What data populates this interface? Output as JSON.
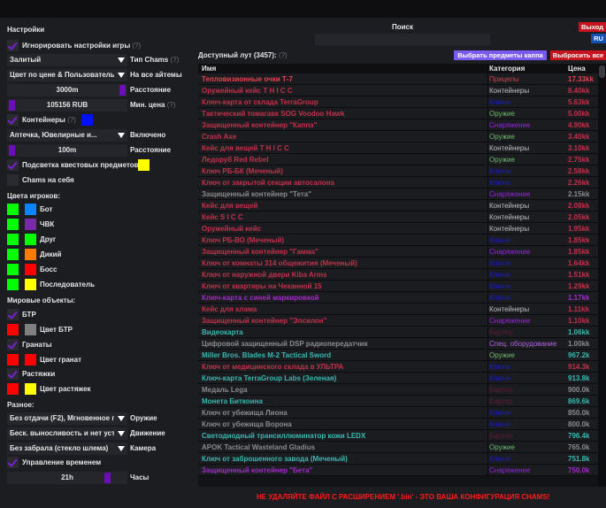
{
  "settings": {
    "title": "Настройки",
    "ignore_game_settings": "Игнорировать настройки игры",
    "help": "(?)",
    "chams_type_value": "Залитый",
    "chams_type_label": "Тип Chams",
    "color_mode_value": "Цвет по цене & Пользователь",
    "color_mode_label": "На все айтемы",
    "distance_value": "3000m",
    "distance_label": "Расстояние",
    "min_price_value": "105156 RUB",
    "min_price_label": "Мин. цена",
    "containers_label": "Контейнеры",
    "filter_value": "Аптечка, Ювелирные и...",
    "filter_label": "Включено",
    "container_distance_value": "100m",
    "container_distance_label": "Расстояние",
    "quest_highlight_label": "Подсветка квестовых предметов",
    "chams_self_label": "Chams на себя",
    "player_colors_title": "Цвета игроков:",
    "players": [
      {
        "label": "Бот",
        "c1": "#00ff00",
        "c2": "#0a84ff"
      },
      {
        "label": "ЧВК",
        "c1": "#00ff00",
        "c2": "#7a2aa8"
      },
      {
        "label": "Друг",
        "c1": "#00ff00",
        "c2": "#00ff00"
      },
      {
        "label": "Дикий",
        "c1": "#00ff00",
        "c2": "#ff7a00"
      },
      {
        "label": "Босс",
        "c1": "#00ff00",
        "c2": "#ff0000"
      },
      {
        "label": "Последователь",
        "c1": "#00ff00",
        "c2": "#ffff00"
      }
    ],
    "world_title": "Мировые объекты:",
    "btr_label": "БТР",
    "btr_color_label": "Цвет БТР",
    "grenades_label": "Гранаты",
    "grenades_color_label": "Цвет гранат",
    "tripwires_label": "Растяжки",
    "tripwires_color_label": "Цвет растяжек",
    "misc_title": "Разное:",
    "weapon_value": "Без отдачи (F2), Мгновенное п",
    "weapon_label": "Оружие",
    "movement_value": "Беск. выносливость и нет уста:",
    "movement_label": "Движение",
    "camera_value": "Без забрала (стекло шлема)",
    "camera_label": "Камера",
    "time_control_label": "Управление временем",
    "hours_value": "21h",
    "hours_label": "Часы"
  },
  "header": {
    "search_label": "Поиск",
    "search_value": "",
    "exit": "Выход",
    "lang": "RU"
  },
  "loot": {
    "title": "Доступный лут (3457):",
    "help": "(?)",
    "select_kappa": "Выбрать предметы каппа",
    "drop_all": "Выбросить все",
    "columns": [
      "Имя",
      "Категория",
      "Цена"
    ],
    "rows": [
      {
        "name": "Тепловизионные очки Т-7",
        "cat": "Прицелы",
        "price": "17.33kk",
        "nc": "#e8414f",
        "cc": "#d0404c",
        "pc": "#e8414f"
      },
      {
        "name": "Оружейный кейс T H I C C",
        "cat": "Контейнеры",
        "price": "8.40kk",
        "nc": "#c2304a",
        "cc": "#c0c0c0",
        "pc": "#c2304a"
      },
      {
        "name": "Ключ-карта от склада TerraGroup",
        "cat": "Ключи",
        "price": "5.63kk",
        "nc": "#c2304a",
        "cc": "#1a1ad0",
        "pc": "#c2304a"
      },
      {
        "name": "Тактический томагавк SOG Voodoo Hawk",
        "cat": "Оружие",
        "price": "5.00kk",
        "nc": "#c2304a",
        "cc": "#6db86d",
        "pc": "#c2304a"
      },
      {
        "name": "Защищенный контейнер \"Каппа\"",
        "cat": "Снаряжение",
        "price": "4.90kk",
        "nc": "#c2304a",
        "cc": "#9a1ee8",
        "pc": "#c2304a"
      },
      {
        "name": "Crash Axe",
        "cat": "Оружие",
        "price": "3.40kk",
        "nc": "#c2304a",
        "cc": "#6db86d",
        "pc": "#c2304a"
      },
      {
        "name": "Кейс для вещей T H I C C",
        "cat": "Контейнеры",
        "price": "3.10kk",
        "nc": "#c2304a",
        "cc": "#c0c0c0",
        "pc": "#c2304a"
      },
      {
        "name": "Ледоруб Red Rebel",
        "cat": "Оружие",
        "price": "2.75kk",
        "nc": "#c2304a",
        "cc": "#6db86d",
        "pc": "#c2304a"
      },
      {
        "name": "Ключ РБ-БК (Меченый)",
        "cat": "Ключи",
        "price": "2.58kk",
        "nc": "#c2304a",
        "cc": "#1a1ad0",
        "pc": "#c2304a"
      },
      {
        "name": "Ключ от закрытой секции автосалона",
        "cat": "Ключи",
        "price": "2.26kk",
        "nc": "#c2304a",
        "cc": "#1a1ad0",
        "pc": "#c2304a"
      },
      {
        "name": "Защищенный контейнер \"Тета\"",
        "cat": "Снаряжение",
        "price": "2.15kk",
        "nc": "#8a8a8a",
        "cc": "#9a1ee8",
        "pc": "#8a8a8a"
      },
      {
        "name": "Кейс для вещей",
        "cat": "Контейнеры",
        "price": "2.08kk",
        "nc": "#c2304a",
        "cc": "#c0c0c0",
        "pc": "#c2304a"
      },
      {
        "name": "Кейс S I C C",
        "cat": "Контейнеры",
        "price": "2.05kk",
        "nc": "#c2304a",
        "cc": "#c0c0c0",
        "pc": "#c2304a"
      },
      {
        "name": "Оружейный кейс",
        "cat": "Контейнеры",
        "price": "1.95kk",
        "nc": "#c2304a",
        "cc": "#c0c0c0",
        "pc": "#c2304a"
      },
      {
        "name": "Ключ РБ-ВО (Меченый)",
        "cat": "Ключи",
        "price": "1.85kk",
        "nc": "#c2304a",
        "cc": "#1a1ad0",
        "pc": "#c2304a"
      },
      {
        "name": "Защищенный контейнер \"Гамма\"",
        "cat": "Снаряжение",
        "price": "1.85kk",
        "nc": "#c2304a",
        "cc": "#9a1ee8",
        "pc": "#c2304a"
      },
      {
        "name": "Ключ от комнаты 314 общежития (Меченый)",
        "cat": "Ключи",
        "price": "1.64kk",
        "nc": "#c2304a",
        "cc": "#1a1ad0",
        "pc": "#c2304a"
      },
      {
        "name": "Ключ от наружной двери Kiba Arms",
        "cat": "Ключи",
        "price": "1.51kk",
        "nc": "#c2304a",
        "cc": "#1a1ad0",
        "pc": "#c2304a"
      },
      {
        "name": "Ключ от квартиры на Чеканной 15",
        "cat": "Ключи",
        "price": "1.29kk",
        "nc": "#c2304a",
        "cc": "#1a1ad0",
        "pc": "#c2304a"
      },
      {
        "name": "Ключ-карта с синей маркировкой",
        "cat": "Ключи",
        "price": "1.17kk",
        "nc": "#a02cc8",
        "cc": "#1a1ad0",
        "pc": "#a02cc8"
      },
      {
        "name": "Кейс для хлама",
        "cat": "Контейнеры",
        "price": "1.11kk",
        "nc": "#c2304a",
        "cc": "#c0c0c0",
        "pc": "#c2304a"
      },
      {
        "name": "Защищенный контейнер \"Эпсилон\"",
        "cat": "Снаряжение",
        "price": "1.10kk",
        "nc": "#c2304a",
        "cc": "#9a1ee8",
        "pc": "#c2304a"
      },
      {
        "name": "Видеокарта",
        "cat": "Бартер",
        "price": "1.06kk",
        "nc": "#3ab8b0",
        "cc": "#5a1c30",
        "pc": "#3ab8b0"
      },
      {
        "name": "Цифровой защищенный DSP радиопередатчик",
        "cat": "Спец. оборудование",
        "price": "1.00kk",
        "nc": "#8a8a8a",
        "cc": "#b060e8",
        "pc": "#8a8a8a"
      },
      {
        "name": "Miller Bros. Blades M-2 Tactical Sword",
        "cat": "Оружие",
        "price": "967.2k",
        "nc": "#3ab8b0",
        "cc": "#6db86d",
        "pc": "#3ab8b0"
      },
      {
        "name": "Ключ от медицинского склада в УЛЬТРА",
        "cat": "Ключи",
        "price": "914.3k",
        "nc": "#c2304a",
        "cc": "#1a1ad0",
        "pc": "#c2304a"
      },
      {
        "name": "Ключ-карта TerraGroup Labs (Зеленая)",
        "cat": "Ключи",
        "price": "913.8k",
        "nc": "#3ab8b0",
        "cc": "#1a1ad0",
        "pc": "#3ab8b0"
      },
      {
        "name": "Медаль Lega",
        "cat": "Бартер",
        "price": "900.0k",
        "nc": "#8a8a8a",
        "cc": "#5a1c30",
        "pc": "#8a8a8a"
      },
      {
        "name": "Монета Биткоина",
        "cat": "Бартер",
        "price": "869.6k",
        "nc": "#3ab8b0",
        "cc": "#5a1c30",
        "pc": "#3ab8b0"
      },
      {
        "name": "Ключ от убежища Лиона",
        "cat": "Ключи",
        "price": "850.0k",
        "nc": "#8a8a8a",
        "cc": "#1a1ad0",
        "pc": "#8a8a8a"
      },
      {
        "name": "Ключ от убежища Ворона",
        "cat": "Ключи",
        "price": "800.0k",
        "nc": "#8a8a8a",
        "cc": "#1a1ad0",
        "pc": "#8a8a8a"
      },
      {
        "name": "Светодиодный трансиллюминатор кожи LEDX",
        "cat": "Бартер",
        "price": "796.4k",
        "nc": "#3ab8b0",
        "cc": "#5a1c30",
        "pc": "#3ab8b0"
      },
      {
        "name": "APOK Tactical Wasteland Gladius",
        "cat": "Оружие",
        "price": "765.0k",
        "nc": "#8a8a8a",
        "cc": "#6db86d",
        "pc": "#8a8a8a"
      },
      {
        "name": "Ключ от заброшенного завода (Меченый)",
        "cat": "Ключи",
        "price": "751.8k",
        "nc": "#3ab8b0",
        "cc": "#1a1ad0",
        "pc": "#3ab8b0"
      },
      {
        "name": "Защищенный контейнер \"Бета\"",
        "cat": "Снаряжение",
        "price": "750.0k",
        "nc": "#a02cc8",
        "cc": "#9a1ee8",
        "pc": "#a02cc8"
      }
    ]
  },
  "warning": "НЕ УДАЛЯЙТЕ ФАЙЛ С РАСШИРЕНИЕМ '.bin' - ЭТО ВАША КОНФИГУРАЦИЯ CHAMS!",
  "colors": {
    "accent": "#6a0fb8",
    "kappa_button": "#7a5af0",
    "danger": "#c8141e",
    "lang_button": "#1450b4"
  }
}
